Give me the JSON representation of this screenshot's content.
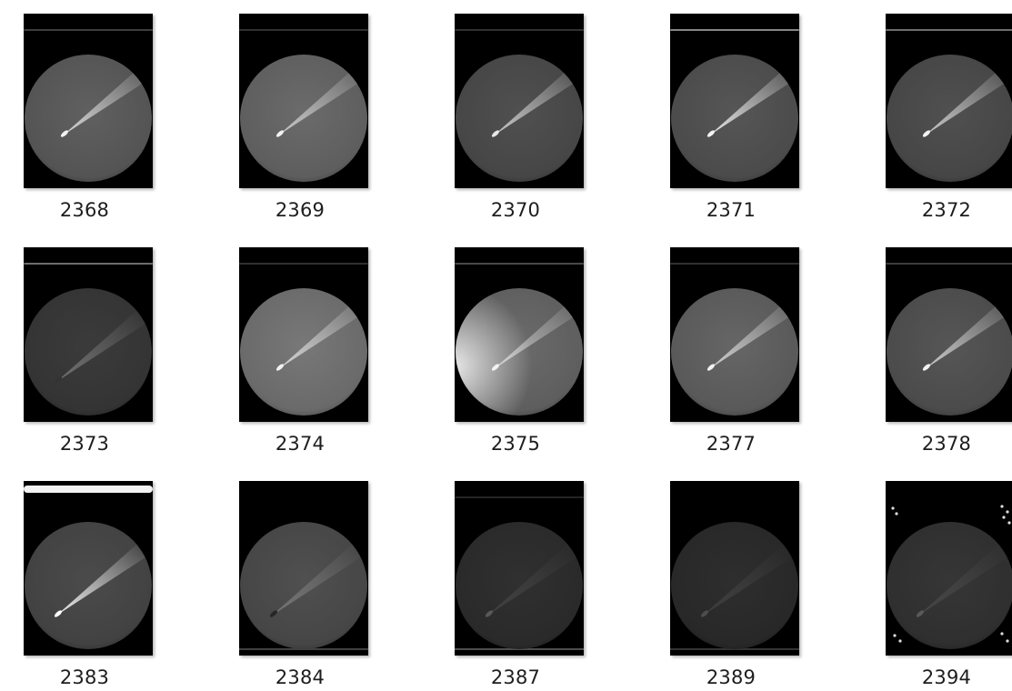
{
  "window": {
    "view": "Large icons",
    "folder_items_visible": 15
  },
  "files": [
    {
      "name": "2368",
      "thumb": {
        "disk": 0.36,
        "tail": 0.75,
        "head": 0.95,
        "top_band": 0.25,
        "bottom_band": 0.0,
        "left_glow": 0.0,
        "corner_dots": false,
        "head_pos": "mid"
      }
    },
    {
      "name": "2369",
      "thumb": {
        "disk": 0.4,
        "tail": 0.65,
        "head": 0.95,
        "top_band": 0.2,
        "bottom_band": 0.0,
        "left_glow": 0.0,
        "corner_dots": false,
        "head_pos": "mid"
      }
    },
    {
      "name": "2370",
      "thumb": {
        "disk": 0.3,
        "tail": 0.7,
        "head": 0.9,
        "top_band": 0.2,
        "bottom_band": 0.0,
        "left_glow": 0.0,
        "corner_dots": false,
        "head_pos": "mid"
      }
    },
    {
      "name": "2371",
      "thumb": {
        "disk": 0.32,
        "tail": 0.85,
        "head": 0.95,
        "top_band": 0.55,
        "bottom_band": 0.0,
        "left_glow": 0.0,
        "corner_dots": false,
        "head_pos": "mid"
      }
    },
    {
      "name": "2372",
      "thumb": {
        "disk": 0.3,
        "tail": 0.7,
        "head": 0.95,
        "top_band": 0.45,
        "bottom_band": 0.0,
        "left_glow": 0.0,
        "corner_dots": false,
        "head_pos": "mid"
      }
    },
    {
      "name": "2373",
      "thumb": {
        "disk": 0.22,
        "tail": 0.3,
        "head": 0.2,
        "top_band": 0.45,
        "bottom_band": 0.0,
        "left_glow": 0.0,
        "corner_dots": false,
        "head_pos": "low"
      }
    },
    {
      "name": "2374",
      "thumb": {
        "disk": 0.45,
        "tail": 0.7,
        "head": 0.95,
        "top_band": 0.2,
        "bottom_band": 0.0,
        "left_glow": 0.0,
        "corner_dots": false,
        "head_pos": "mid"
      }
    },
    {
      "name": "2375",
      "thumb": {
        "disk": 0.4,
        "tail": 0.6,
        "head": 0.95,
        "top_band": 0.3,
        "bottom_band": 0.0,
        "left_glow": 0.85,
        "corner_dots": false,
        "head_pos": "mid"
      }
    },
    {
      "name": "2377",
      "thumb": {
        "disk": 0.38,
        "tail": 0.7,
        "head": 0.95,
        "top_band": 0.2,
        "bottom_band": 0.0,
        "left_glow": 0.0,
        "corner_dots": false,
        "head_pos": "mid"
      }
    },
    {
      "name": "2378",
      "thumb": {
        "disk": 0.32,
        "tail": 0.7,
        "head": 0.95,
        "top_band": 0.25,
        "bottom_band": 0.0,
        "left_glow": 0.0,
        "corner_dots": false,
        "head_pos": "mid"
      }
    },
    {
      "name": "2383",
      "thumb": {
        "disk": 0.28,
        "tail": 0.9,
        "head": 1.0,
        "top_band": 1.0,
        "bottom_band": 0.0,
        "left_glow": 0.0,
        "corner_dots": false,
        "head_pos": "low"
      }
    },
    {
      "name": "2384",
      "thumb": {
        "disk": 0.3,
        "tail": 0.25,
        "head": 0.15,
        "top_band": 0.0,
        "bottom_band": 0.25,
        "left_glow": 0.0,
        "corner_dots": false,
        "head_pos": "low"
      }
    },
    {
      "name": "2387",
      "thumb": {
        "disk": 0.18,
        "tail": 0.1,
        "head": 0.35,
        "top_band": 0.15,
        "bottom_band": 0.3,
        "left_glow": 0.0,
        "corner_dots": false,
        "head_pos": "low"
      }
    },
    {
      "name": "2389",
      "thumb": {
        "disk": 0.17,
        "tail": 0.1,
        "head": 0.3,
        "top_band": 0.0,
        "bottom_band": 0.2,
        "left_glow": 0.0,
        "corner_dots": false,
        "head_pos": "low"
      }
    },
    {
      "name": "2394",
      "thumb": {
        "disk": 0.2,
        "tail": 0.1,
        "head": 0.35,
        "top_band": 0.0,
        "bottom_band": 0.0,
        "left_glow": 0.0,
        "corner_dots": true,
        "head_pos": "low"
      }
    }
  ]
}
